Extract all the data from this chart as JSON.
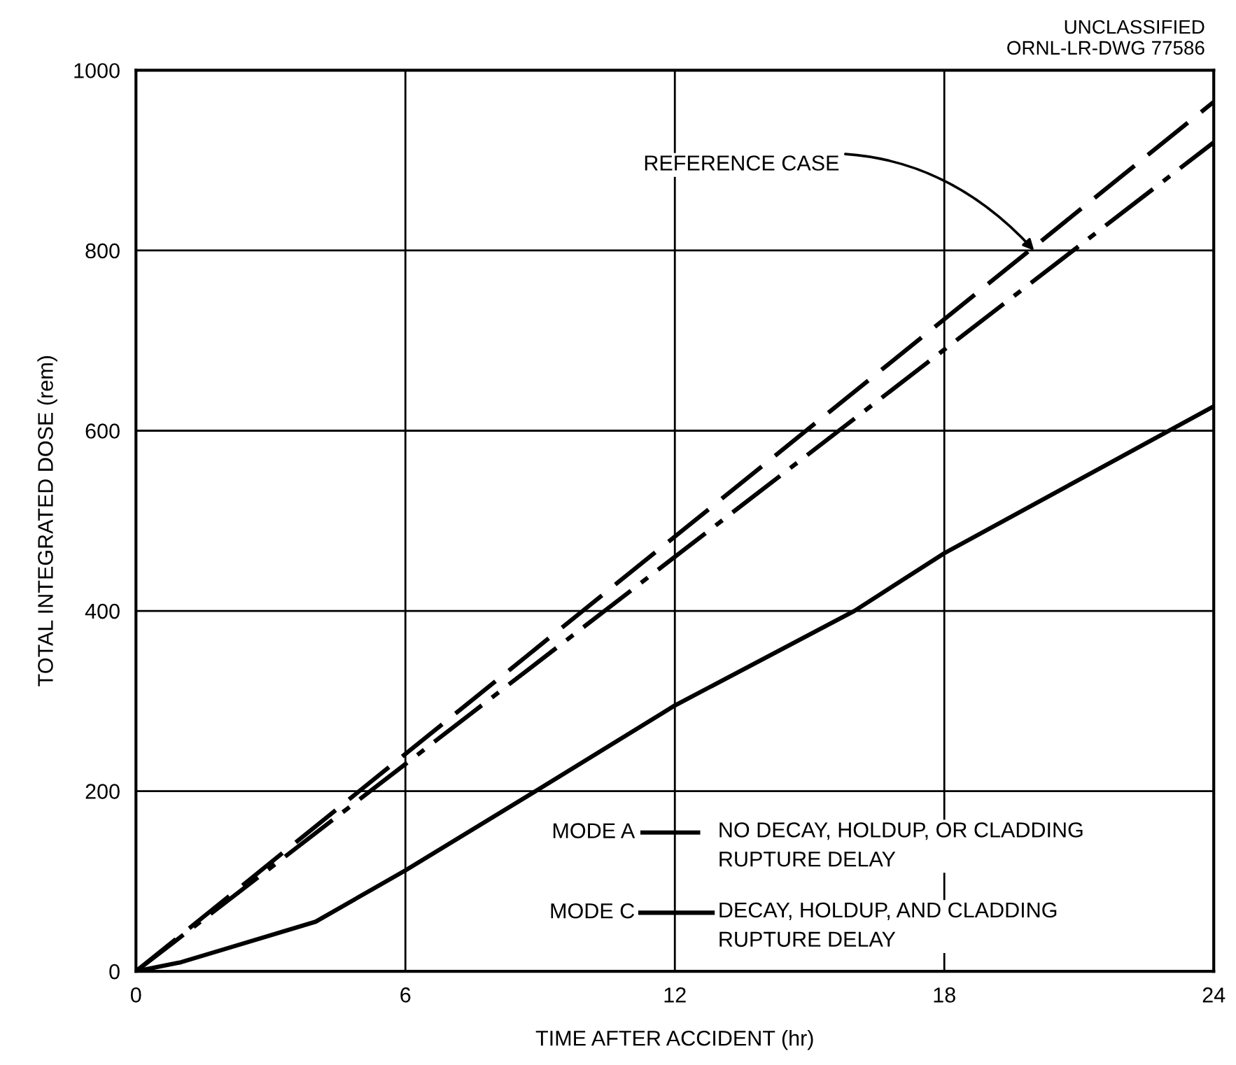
{
  "chart_data": {
    "type": "line",
    "xlabel": "TIME AFTER ACCIDENT (hr)",
    "ylabel": "TOTAL INTEGRATED DOSE (rem)",
    "xlim": [
      0,
      24
    ],
    "ylim": [
      0,
      1000
    ],
    "xticks": [
      0,
      6,
      12,
      18,
      24
    ],
    "yticks": [
      0,
      200,
      400,
      600,
      800,
      1000
    ],
    "grid": true,
    "legend": "bottom right",
    "series": [
      {
        "color": "#000000",
        "line_style": "dashed",
        "x": [
          0,
          24
        ],
        "values": [
          0,
          965
        ]
      },
      {
        "name": "MODE A",
        "color": "#000000",
        "line_style": "dashdot",
        "x": [
          0,
          24
        ],
        "values": [
          0,
          920
        ]
      },
      {
        "name": "MODE C",
        "color": "#000000",
        "line_style": "solid",
        "x": [
          0,
          1,
          2,
          4,
          6,
          9,
          12,
          16,
          18,
          24
        ],
        "values": [
          0,
          10,
          25,
          55,
          112,
          203,
          295,
          400,
          464,
          627
        ]
      }
    ],
    "annotations": [
      "UNCLASSIFIED\nORNL-LR-DWG 77586",
      {
        "text": "REFERENCE CASE",
        "x": 20,
        "y": 800
      },
      "NO DECAY, HOLDUP, OR CLADDING\nRUPTURE DELAY",
      "DECAY, HOLDUP, AND CLADDING\nRUPTURE DELAY"
    ]
  }
}
